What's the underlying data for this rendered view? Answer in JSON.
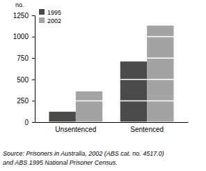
{
  "chart_data": {
    "type": "bar",
    "ylabel": "no.",
    "categories": [
      "Unsentenced",
      "Sentenced"
    ],
    "series": [
      {
        "name": "1995",
        "color": "#4a4a4a",
        "values": [
          122,
          710
        ]
      },
      {
        "name": "2002",
        "color": "#a3a3a3",
        "values": [
          360,
          1130
        ]
      }
    ],
    "ylim": [
      0,
      1250
    ],
    "yticks": [
      0,
      250,
      500,
      750,
      1000,
      1250
    ],
    "grid": true,
    "legend": "top-left",
    "source": [
      "Source: Prisoners in Australia, 2002 (ABS cat. no. 4517.0)",
      "and ABS 1995 National Prisoner Census."
    ]
  }
}
